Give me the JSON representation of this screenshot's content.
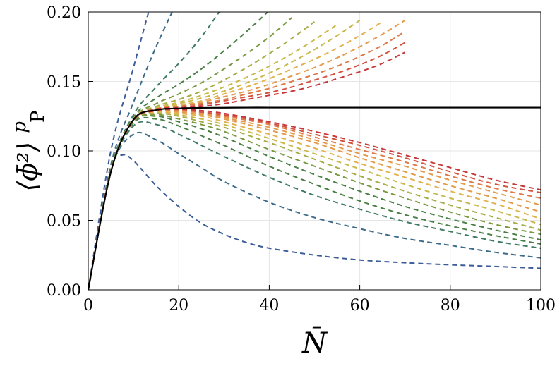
{
  "chart_data": {
    "type": "line",
    "xlabel": "N̄",
    "ylabel": "⟨ϕ̄²⟩",
    "ylabel_superscript": "p",
    "ylabel_subscript": "P",
    "xlim": [
      0,
      100
    ],
    "ylim": [
      0,
      0.2
    ],
    "x_ticks": [
      0,
      20,
      40,
      60,
      80,
      100
    ],
    "x_tick_labels": [
      "0",
      "20",
      "40",
      "60",
      "80",
      "100"
    ],
    "y_ticks": [
      0,
      0.05,
      0.1,
      0.15,
      0.2
    ],
    "y_tick_labels": [
      "0.00",
      "0.05",
      "0.10",
      "0.15",
      "0.20"
    ],
    "grid": true,
    "limit_curve_color": "#000000",
    "palette": [
      "#3b5c99",
      "#3d6b8a",
      "#3f7a62",
      "#4a8045",
      "#7a9a40",
      "#a6ac45",
      "#c9b84a",
      "#e2b24f",
      "#e39a4c",
      "#dd7a48",
      "#d2523f",
      "#c7383a"
    ],
    "series": [
      {
        "x": [
          0,
          5,
          10,
          15,
          20,
          25,
          30,
          35,
          40,
          45,
          50,
          55,
          60,
          65,
          70,
          75,
          80,
          85,
          90,
          95,
          100
        ],
        "y": [
          0,
          0.0848,
          0.1225,
          0.1294,
          0.1306,
          0.131,
          0.1311,
          0.1312,
          0.1312,
          0.1312,
          0.1312,
          0.1312,
          0.1312,
          0.1312,
          0.1312,
          0.1312,
          0.1312,
          0.1312,
          0.1312,
          0.1312,
          0.1312
        ]
      },
      {
        "x": [
          0,
          5,
          7.5,
          10,
          15,
          20,
          25,
          30,
          35,
          40,
          50,
          60,
          70,
          80,
          90,
          100
        ],
        "y": [
          0,
          0.088,
          0.097,
          0.093,
          0.075,
          0.06,
          0.048,
          0.04,
          0.034,
          0.03,
          0.025,
          0.0215,
          0.0195,
          0.018,
          0.0168,
          0.0155
        ]
      },
      {
        "x": [
          0,
          5,
          10,
          15,
          20,
          25,
          30,
          40,
          50,
          60,
          70,
          80,
          90,
          100
        ],
        "y": [
          0,
          0.086,
          0.112,
          0.108,
          0.098,
          0.088,
          0.078,
          0.063,
          0.052,
          0.044,
          0.037,
          0.032,
          0.027,
          0.023
        ]
      },
      {
        "x": [
          0,
          5,
          10,
          15,
          20,
          25,
          30,
          40,
          50,
          60,
          70,
          80,
          90,
          100
        ],
        "y": [
          0,
          0.085,
          0.118,
          0.119,
          0.112,
          0.104,
          0.096,
          0.081,
          0.068,
          0.058,
          0.049,
          0.042,
          0.035,
          0.03
        ]
      },
      {
        "x": [
          0,
          5,
          10,
          15,
          20,
          25,
          30,
          40,
          50,
          60,
          70,
          80,
          90,
          100
        ],
        "y": [
          0,
          0.085,
          0.12,
          0.123,
          0.118,
          0.111,
          0.104,
          0.089,
          0.076,
          0.064,
          0.054,
          0.046,
          0.039,
          0.033
        ]
      },
      {
        "x": [
          0,
          5,
          10,
          15,
          20,
          25,
          30,
          40,
          50,
          60,
          70,
          80,
          90,
          100
        ],
        "y": [
          0,
          0.085,
          0.121,
          0.125,
          0.121,
          0.116,
          0.11,
          0.096,
          0.083,
          0.071,
          0.06,
          0.051,
          0.043,
          0.036
        ]
      },
      {
        "x": [
          0,
          5,
          10,
          15,
          20,
          25,
          30,
          40,
          50,
          60,
          70,
          80,
          90,
          100
        ],
        "y": [
          0,
          0.085,
          0.121,
          0.126,
          0.123,
          0.119,
          0.114,
          0.101,
          0.089,
          0.077,
          0.066,
          0.056,
          0.047,
          0.04
        ]
      },
      {
        "x": [
          0,
          5,
          10,
          15,
          20,
          25,
          30,
          40,
          50,
          60,
          70,
          80,
          90,
          100
        ],
        "y": [
          0,
          0.085,
          0.122,
          0.127,
          0.125,
          0.121,
          0.117,
          0.106,
          0.094,
          0.082,
          0.071,
          0.061,
          0.052,
          0.043
        ]
      },
      {
        "x": [
          0,
          5,
          10,
          15,
          20,
          25,
          30,
          40,
          50,
          60,
          70,
          80,
          90,
          100
        ],
        "y": [
          0,
          0.085,
          0.122,
          0.128,
          0.126,
          0.123,
          0.119,
          0.109,
          0.098,
          0.087,
          0.076,
          0.066,
          0.057,
          0.047
        ]
      },
      {
        "x": [
          0,
          5,
          10,
          15,
          20,
          25,
          30,
          40,
          50,
          60,
          70,
          80,
          90,
          100
        ],
        "y": [
          0,
          0.085,
          0.122,
          0.128,
          0.127,
          0.125,
          0.121,
          0.112,
          0.102,
          0.091,
          0.081,
          0.071,
          0.062,
          0.051
        ]
      },
      {
        "x": [
          0,
          5,
          10,
          15,
          20,
          25,
          30,
          40,
          50,
          60,
          70,
          80,
          90,
          100
        ],
        "y": [
          0,
          0.085,
          0.122,
          0.129,
          0.128,
          0.126,
          0.123,
          0.115,
          0.106,
          0.095,
          0.085,
          0.075,
          0.066,
          0.056
        ]
      },
      {
        "x": [
          0,
          5,
          10,
          15,
          20,
          25,
          30,
          40,
          50,
          60,
          70,
          80,
          90,
          100
        ],
        "y": [
          0,
          0.085,
          0.122,
          0.129,
          0.129,
          0.127,
          0.124,
          0.117,
          0.108,
          0.098,
          0.089,
          0.079,
          0.07,
          0.061
        ]
      },
      {
        "x": [
          0,
          5,
          10,
          15,
          20,
          25,
          30,
          40,
          50,
          60,
          70,
          80,
          90,
          100
        ],
        "y": [
          0,
          0.085,
          0.122,
          0.129,
          0.129,
          0.128,
          0.125,
          0.119,
          0.11,
          0.101,
          0.092,
          0.082,
          0.073,
          0.066
        ]
      },
      {
        "x": [
          0,
          5,
          10,
          15,
          20,
          25,
          30,
          40,
          50,
          60,
          70,
          80,
          90,
          100
        ],
        "y": [
          0,
          0.085,
          0.122,
          0.129,
          0.13,
          0.128,
          0.126,
          0.12,
          0.112,
          0.104,
          0.095,
          0.085,
          0.076,
          0.07
        ]
      },
      {
        "x": [
          0,
          5,
          10,
          15,
          20,
          25,
          30,
          40,
          50,
          60,
          70,
          80,
          90,
          100
        ],
        "y": [
          0,
          0.085,
          0.122,
          0.129,
          0.13,
          0.129,
          0.127,
          0.121,
          0.114,
          0.106,
          0.097,
          0.088,
          0.079,
          0.072
        ]
      },
      {
        "x": [
          0,
          5,
          10,
          15
        ],
        "y": [
          0,
          0.1,
          0.16,
          0.22
        ]
      },
      {
        "x": [
          0,
          5,
          10,
          15,
          20
        ],
        "y": [
          0,
          0.09,
          0.135,
          0.175,
          0.21
        ]
      },
      {
        "x": [
          0,
          5,
          10,
          15,
          20,
          25,
          30
        ],
        "y": [
          0,
          0.087,
          0.126,
          0.146,
          0.163,
          0.182,
          0.205
        ]
      },
      {
        "x": [
          0,
          5,
          10,
          15,
          20,
          25,
          30,
          35,
          40
        ],
        "y": [
          0,
          0.086,
          0.124,
          0.138,
          0.148,
          0.159,
          0.172,
          0.186,
          0.201
        ]
      },
      {
        "x": [
          0,
          5,
          10,
          15,
          20,
          25,
          30,
          35,
          40,
          45
        ],
        "y": [
          0,
          0.086,
          0.123,
          0.134,
          0.141,
          0.149,
          0.159,
          0.17,
          0.182,
          0.196
        ]
      },
      {
        "x": [
          0,
          5,
          10,
          15,
          20,
          25,
          30,
          35,
          40,
          45,
          50
        ],
        "y": [
          0,
          0.085,
          0.123,
          0.132,
          0.137,
          0.143,
          0.151,
          0.16,
          0.17,
          0.181,
          0.193
        ]
      },
      {
        "x": [
          0,
          5,
          10,
          15,
          20,
          25,
          30,
          35,
          40,
          45,
          50,
          55
        ],
        "y": [
          0,
          0.085,
          0.123,
          0.131,
          0.135,
          0.14,
          0.146,
          0.153,
          0.161,
          0.17,
          0.18,
          0.191
        ]
      },
      {
        "x": [
          0,
          5,
          10,
          15,
          20,
          25,
          30,
          35,
          40,
          45,
          50,
          55,
          60
        ],
        "y": [
          0,
          0.085,
          0.123,
          0.13,
          0.134,
          0.138,
          0.143,
          0.149,
          0.156,
          0.164,
          0.173,
          0.183,
          0.194
        ]
      },
      {
        "x": [
          0,
          5,
          10,
          15,
          20,
          25,
          30,
          35,
          40,
          45,
          50,
          55,
          60,
          65
        ],
        "y": [
          0,
          0.085,
          0.123,
          0.13,
          0.133,
          0.136,
          0.141,
          0.146,
          0.152,
          0.159,
          0.166,
          0.174,
          0.183,
          0.193
        ]
      },
      {
        "x": [
          0,
          5,
          10,
          15,
          20,
          25,
          30,
          35,
          40,
          45,
          50,
          55,
          60,
          65,
          70
        ],
        "y": [
          0,
          0.085,
          0.122,
          0.13,
          0.132,
          0.135,
          0.139,
          0.143,
          0.148,
          0.154,
          0.16,
          0.167,
          0.175,
          0.184,
          0.194
        ]
      },
      {
        "x": [
          0,
          5,
          10,
          15,
          20,
          25,
          30,
          35,
          40,
          45,
          50,
          55,
          60,
          65,
          70
        ],
        "y": [
          0,
          0.085,
          0.122,
          0.13,
          0.132,
          0.134,
          0.137,
          0.141,
          0.145,
          0.15,
          0.155,
          0.161,
          0.168,
          0.176,
          0.186
        ]
      },
      {
        "x": [
          0,
          5,
          10,
          15,
          20,
          25,
          30,
          35,
          40,
          45,
          50,
          55,
          60,
          65,
          70
        ],
        "y": [
          0,
          0.085,
          0.122,
          0.13,
          0.131,
          0.133,
          0.136,
          0.139,
          0.142,
          0.146,
          0.151,
          0.156,
          0.162,
          0.169,
          0.178
        ]
      },
      {
        "x": [
          0,
          5,
          10,
          15,
          20,
          25,
          30,
          35,
          40,
          45,
          50,
          55,
          60,
          65,
          70
        ],
        "y": [
          0,
          0.085,
          0.122,
          0.13,
          0.131,
          0.132,
          0.134,
          0.137,
          0.14,
          0.143,
          0.147,
          0.152,
          0.157,
          0.163,
          0.171
        ]
      }
    ]
  }
}
